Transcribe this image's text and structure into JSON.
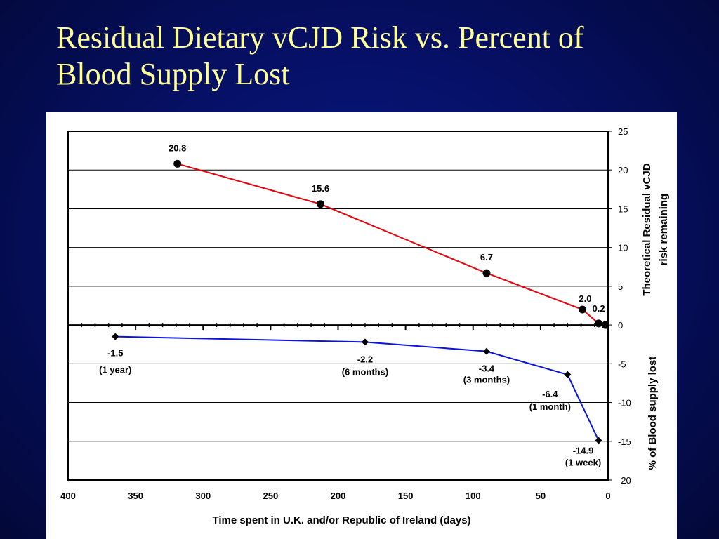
{
  "slide": {
    "title_line1": "Residual Dietary vCJD Risk vs. Percent of",
    "title_line2": "Blood Supply Lost"
  },
  "chart_data": {
    "type": "line",
    "xlabel": "Time spent in U.K. and/or Republic of Ireland (days)",
    "x_range": [
      400,
      0
    ],
    "x_ticks": [
      400,
      350,
      300,
      250,
      200,
      150,
      100,
      50,
      0
    ],
    "y_range": [
      -20,
      25
    ],
    "y_ticks": [
      25,
      20,
      15,
      10,
      5,
      0,
      -5,
      -10,
      -15,
      -20
    ],
    "y_axis_position": "right",
    "grid": true,
    "ylabel_upper": [
      "Theoretical Residual vCJD",
      "risk remaining"
    ],
    "ylabel_lower": "% of Blood supply lost",
    "series": [
      {
        "color": "#e8000b",
        "marker": "circle",
        "points": [
          {
            "x": 319,
            "y": 20.8,
            "label": "20.8"
          },
          {
            "x": 213,
            "y": 15.6,
            "label": "15.6"
          },
          {
            "x": 90,
            "y": 6.7,
            "label": "6.7"
          },
          {
            "x": 19,
            "y": 2.0,
            "label": "2.0"
          },
          {
            "x": 7,
            "y": 0.2,
            "label": "0.2"
          },
          {
            "x": 2,
            "y": 0.0,
            "label": ""
          }
        ]
      },
      {
        "color": "#0a14d8",
        "marker": "diamond",
        "points": [
          {
            "x": 365,
            "y": -1.5,
            "label": "-1.5",
            "sublabel": "(1 year)"
          },
          {
            "x": 180,
            "y": -2.2,
            "label": "-2.2",
            "sublabel": "(6 months)"
          },
          {
            "x": 90,
            "y": -3.4,
            "label": "-3.4",
            "sublabel": "(3 months)"
          },
          {
            "x": 30,
            "y": -6.4,
            "label": "-6.4",
            "sublabel": "(1 month)"
          },
          {
            "x": 7,
            "y": -14.9,
            "label": "-14.9",
            "sublabel": "(1 week)"
          }
        ]
      }
    ]
  }
}
